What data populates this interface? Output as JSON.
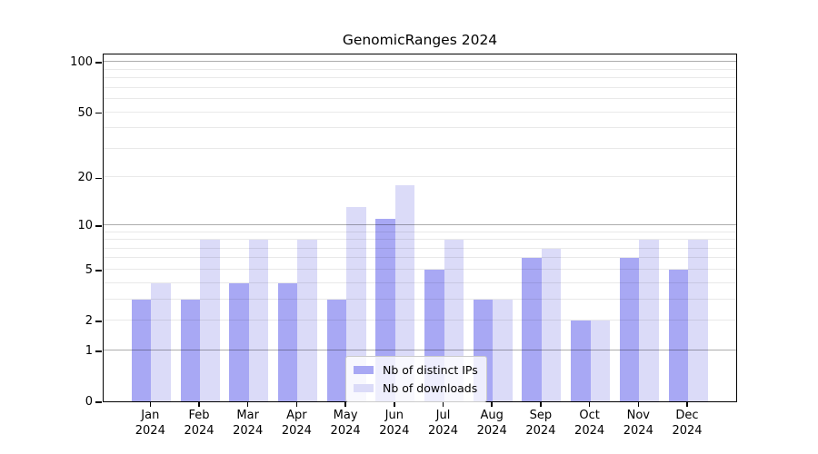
{
  "chart_data": {
    "type": "bar",
    "title": "GenomicRanges 2024",
    "categories": [
      "Jan",
      "Feb",
      "Mar",
      "Apr",
      "May",
      "Jun",
      "Jul",
      "Aug",
      "Sep",
      "Oct",
      "Nov",
      "Dec"
    ],
    "year_label": "2024",
    "series": [
      {
        "name": "Nb of distinct IPs",
        "color": "#a8a8f4",
        "values": [
          3,
          3,
          4,
          4,
          3,
          11,
          5,
          3,
          6,
          2,
          6,
          5
        ]
      },
      {
        "name": "Nb of downloads",
        "color": "#dbdbf8",
        "values": [
          4,
          8,
          8,
          8,
          13,
          18,
          8,
          3,
          7,
          2,
          8,
          8
        ]
      }
    ],
    "y_scale": "log1p",
    "y_ticks": [
      100,
      50,
      20,
      10,
      5,
      2,
      1,
      0
    ],
    "gridlines_minor": [
      2,
      3,
      4,
      5,
      6,
      7,
      8,
      9,
      20,
      30,
      40,
      50,
      60,
      70,
      80,
      90
    ],
    "gridlines_major": [
      1,
      10,
      100
    ],
    "ylim": [
      0,
      113
    ],
    "grid": true,
    "legend_position": "bottom-center",
    "xlabel": "",
    "ylabel": ""
  },
  "colors": {
    "spine": "#000000",
    "grid_minor": "rgba(0,0,0,0.085)",
    "grid_major": "rgba(0,0,0,0.32)",
    "background": "#ffffff"
  }
}
